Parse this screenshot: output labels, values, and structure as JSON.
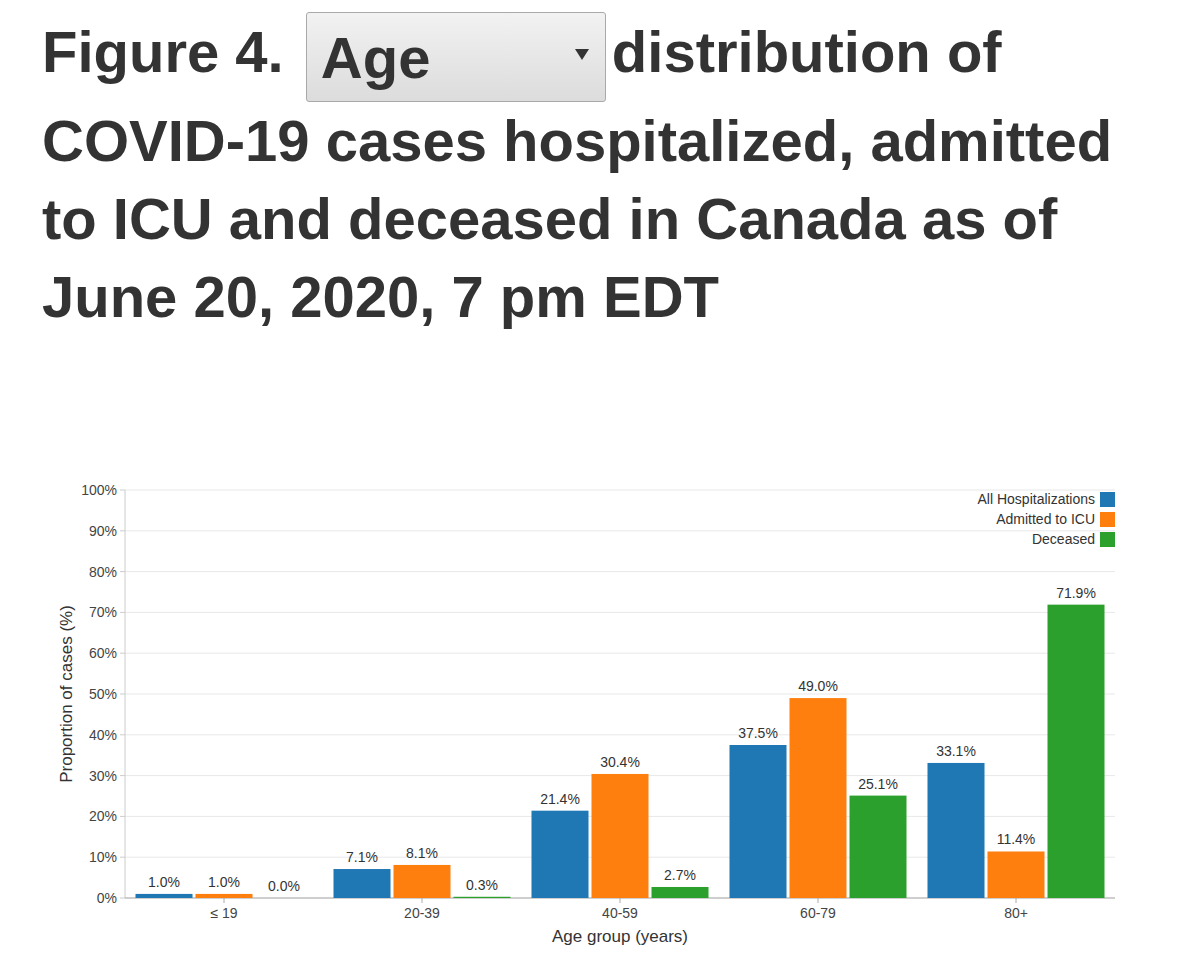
{
  "chart_data": {
    "type": "bar",
    "title": [
      "Figure 4.",
      "Age",
      "distribution of COVID-19 cases hospitalized, admitted to ICU and deceased in Canada as of June 20, 2020, 7 pm EDT"
    ],
    "x_label": "Age group (years)",
    "y_label": "Proportion of cases (%)",
    "categories": [
      "≤ 19",
      "20-39",
      "40-59",
      "60-79",
      "80+"
    ],
    "series": [
      {
        "name": "All Hospitalizations",
        "color": "#1f77b4",
        "values": [
          1.0,
          7.1,
          21.4,
          37.5,
          33.1
        ],
        "value_labels": [
          "1.0%",
          "7.1%",
          "21.4%",
          "37.5%",
          "33.1%"
        ]
      },
      {
        "name": "Admitted to ICU",
        "color": "#ff7f0e",
        "values": [
          1.0,
          8.1,
          30.4,
          49.0,
          11.4
        ],
        "value_labels": [
          "1.0%",
          "8.1%",
          "30.4%",
          "49.0%",
          "11.4%"
        ]
      },
      {
        "name": "Deceased",
        "color": "#2ca02c",
        "values": [
          0.0,
          0.3,
          2.7,
          25.1,
          71.9
        ],
        "value_labels": [
          "0.0%",
          "0.3%",
          "2.7%",
          "25.1%",
          "71.9%"
        ]
      }
    ],
    "ylim": [
      0,
      100
    ],
    "yticks": [
      {
        "value": 0,
        "label": "0%"
      },
      {
        "value": 10,
        "label": "10%"
      },
      {
        "value": 20,
        "label": "20%"
      },
      {
        "value": 30,
        "label": "30%"
      },
      {
        "value": 40,
        "label": "40%"
      },
      {
        "value": 50,
        "label": "50%"
      },
      {
        "value": 60,
        "label": "60%"
      },
      {
        "value": 70,
        "label": "70%"
      },
      {
        "value": 80,
        "label": "80%"
      },
      {
        "value": 90,
        "label": "90%"
      },
      {
        "value": 100,
        "label": "100%"
      }
    ],
    "grid": true,
    "legend": "top-right",
    "data_labels": true
  }
}
